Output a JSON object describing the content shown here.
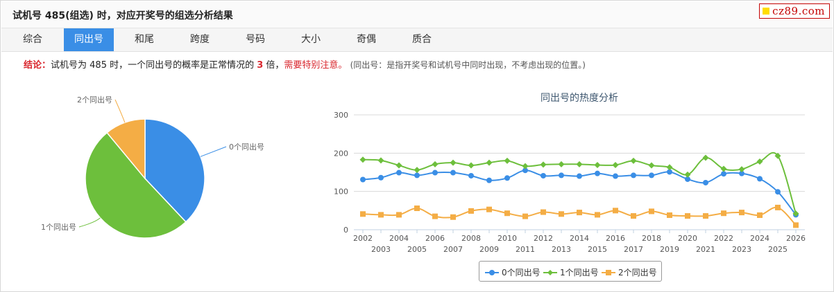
{
  "header": {
    "title": "试机号 485(组选) 时，对应开奖号的组选分析结果"
  },
  "logo": {
    "text": "cz89.com"
  },
  "tabs": [
    {
      "label": "综合"
    },
    {
      "label": "同出号"
    },
    {
      "label": "和尾"
    },
    {
      "label": "跨度"
    },
    {
      "label": "号码"
    },
    {
      "label": "大小"
    },
    {
      "label": "奇偶"
    },
    {
      "label": "质合"
    }
  ],
  "active_tab": "同出号",
  "conclusion": {
    "label": "结论：",
    "text1": "试机号为 485 时，一个同出号的概率是正常情况的 ",
    "multiple": "3",
    "text2": " 倍，",
    "warning": "需要特别注意。",
    "note": "(同出号：是指开奖号和试机号中同时出现，不考虑出现的位置。)"
  },
  "colors": {
    "series0": "#3a8ee6",
    "series1": "#6dbf3c",
    "series2": "#f4ad45",
    "accent": "#3a8ee6",
    "warning": "#d9272e"
  },
  "chart_data": [
    {
      "type": "pie",
      "labels": [
        "0个同出号",
        "1个同出号",
        "2个同出号"
      ],
      "values": [
        38,
        51,
        11
      ]
    },
    {
      "type": "line",
      "title": "同出号的热度分析",
      "x": [
        2002,
        2003,
        2004,
        2005,
        2006,
        2007,
        2008,
        2009,
        2010,
        2011,
        2012,
        2013,
        2014,
        2015,
        2016,
        2017,
        2018,
        2019,
        2020,
        2021,
        2022,
        2023,
        2024,
        2025,
        2026
      ],
      "ylim": [
        0,
        300
      ],
      "yticks": [
        0,
        100,
        200,
        300
      ],
      "grid": true,
      "legend": "bottom",
      "series": [
        {
          "name": "0个同出号",
          "marker": "circle",
          "values": [
            131,
            136,
            149,
            142,
            149,
            149,
            141,
            129,
            135,
            155,
            141,
            142,
            140,
            147,
            140,
            142,
            142,
            151,
            132,
            123,
            146,
            147,
            133,
            99,
            39
          ]
        },
        {
          "name": "1个同出号",
          "marker": "diamond",
          "values": [
            183,
            181,
            168,
            156,
            171,
            175,
            168,
            175,
            180,
            166,
            170,
            171,
            171,
            169,
            169,
            180,
            168,
            163,
            144,
            188,
            159,
            158,
            178,
            193,
            42
          ]
        },
        {
          "name": "2个同出号",
          "marker": "square",
          "values": [
            41,
            39,
            39,
            56,
            35,
            33,
            49,
            53,
            43,
            35,
            46,
            41,
            45,
            39,
            50,
            36,
            48,
            38,
            36,
            36,
            43,
            45,
            38,
            58,
            12
          ]
        }
      ]
    }
  ]
}
